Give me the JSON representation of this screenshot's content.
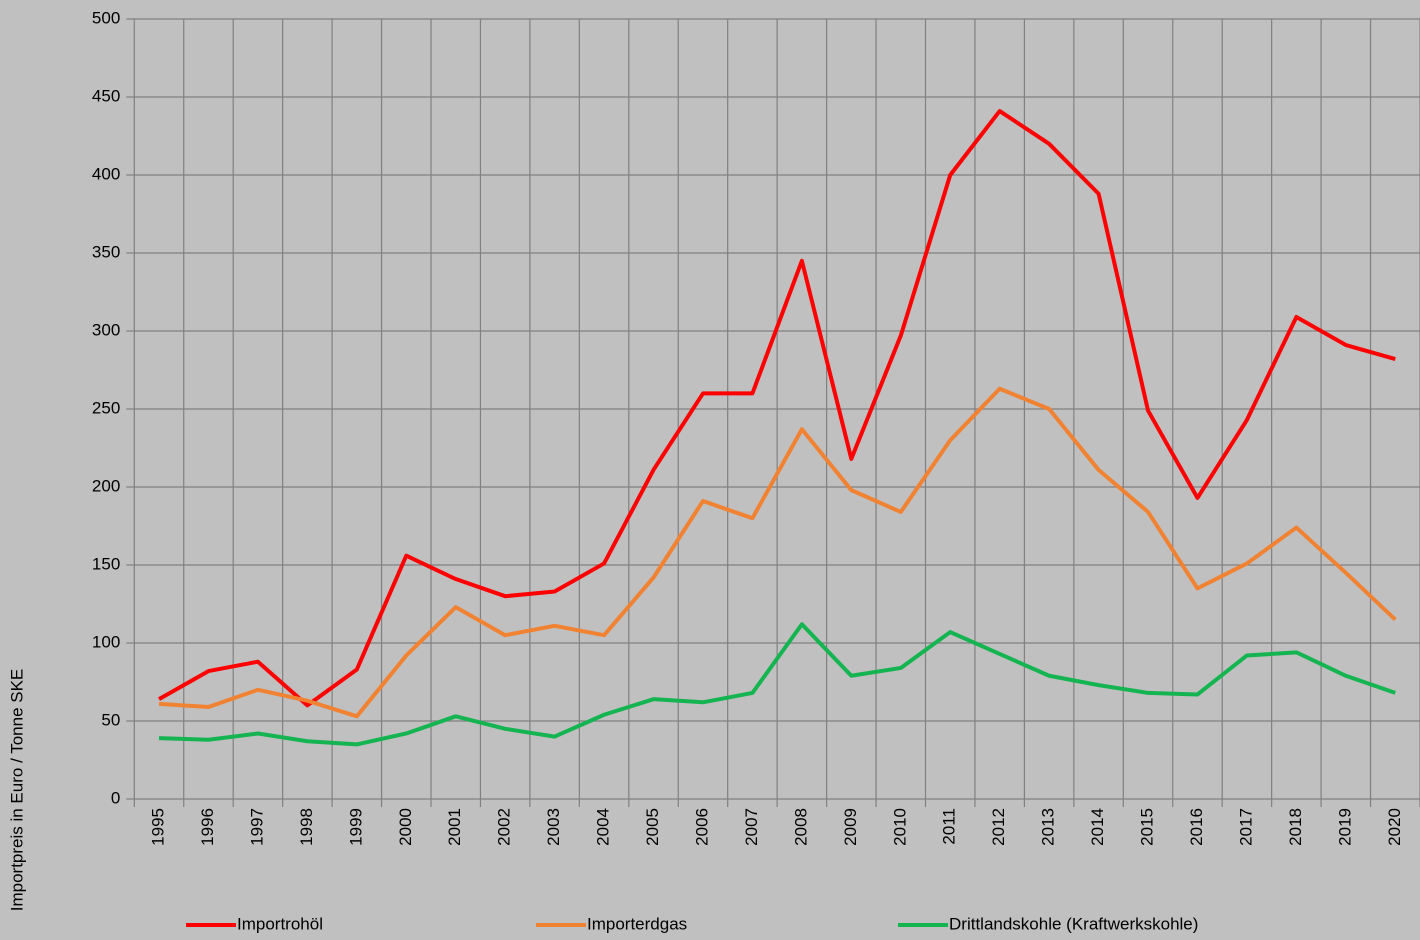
{
  "chart_data": {
    "type": "line",
    "y_axis_label": "Importpreis in Euro / Tonne SKE",
    "categories": [
      "1995",
      "1996",
      "1997",
      "1998",
      "1999",
      "2000",
      "2001",
      "2002",
      "2003",
      "2004",
      "2005",
      "2006",
      "2007",
      "2008",
      "2009",
      "2010",
      "2011",
      "2012",
      "2013",
      "2014",
      "2015",
      "2016",
      "2017",
      "2018",
      "2019",
      "2020"
    ],
    "series": [
      {
        "name": "Importrohöl",
        "color": "#ff0000",
        "values": [
          64,
          82,
          88,
          60,
          83,
          156,
          141,
          130,
          133,
          151,
          211,
          260,
          260,
          345,
          218,
          297,
          400,
          441,
          420,
          388,
          249,
          193,
          243,
          309,
          291,
          282
        ]
      },
      {
        "name": "Importerdgas",
        "color": "#f08232",
        "values": [
          61,
          59,
          70,
          63,
          53,
          92,
          123,
          105,
          111,
          105,
          142,
          191,
          180,
          237,
          198,
          184,
          230,
          263,
          250,
          211,
          184,
          135,
          151,
          174,
          145,
          115
        ]
      },
      {
        "name": "Drittlandskohle (Kraftwerkskohle)",
        "color": "#14b450",
        "values": [
          39,
          38,
          42,
          37,
          35,
          42,
          53,
          45,
          40,
          54,
          64,
          62,
          68,
          112,
          79,
          84,
          107,
          93,
          79,
          73,
          68,
          67,
          92,
          94,
          79,
          68
        ]
      }
    ],
    "ylim": [
      0,
      500
    ],
    "yticks": [
      0,
      50,
      100,
      150,
      200,
      250,
      300,
      350,
      400,
      450,
      500
    ],
    "grid": true
  }
}
